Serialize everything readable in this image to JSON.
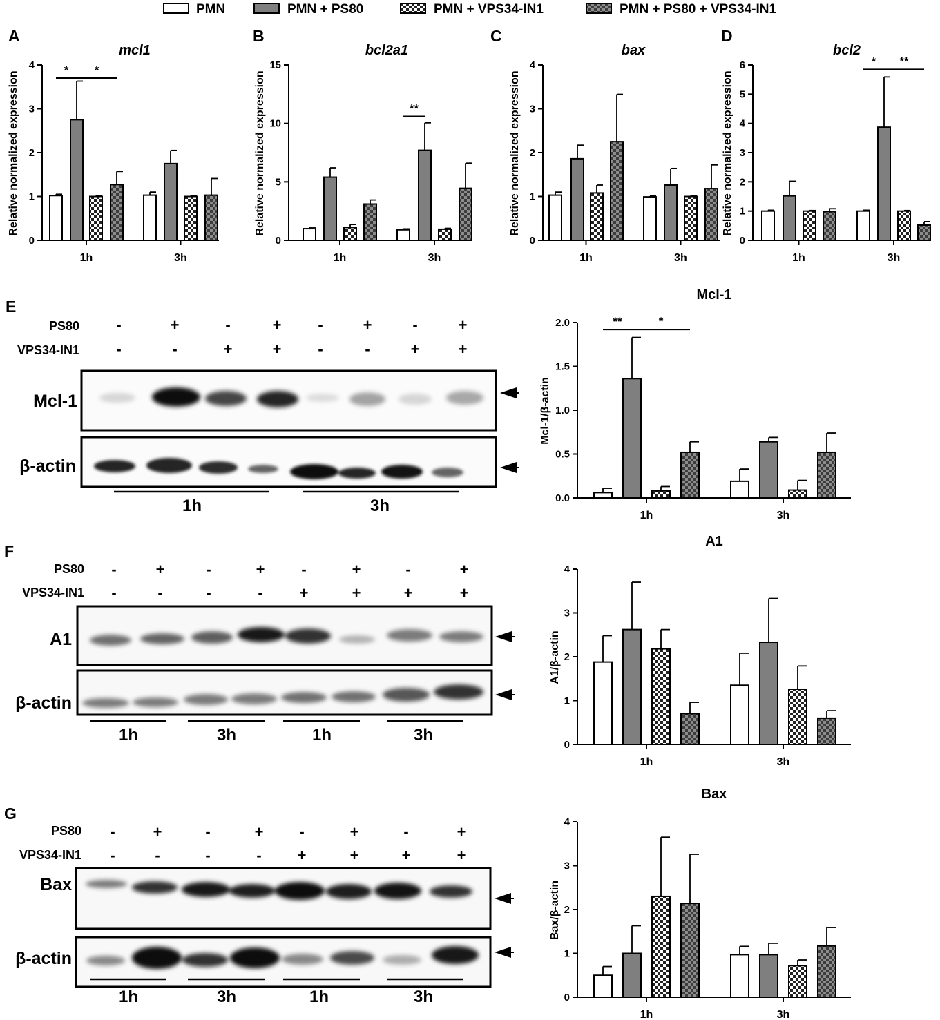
{
  "legend": [
    {
      "label": "PMN",
      "fill": "white"
    },
    {
      "label": "PMN + PS80",
      "fill": "gray"
    },
    {
      "label": "PMN + VPS34-IN1",
      "fill": "check-light"
    },
    {
      "label": "PMN + PS80 + VPS34-IN1",
      "fill": "check-dark"
    }
  ],
  "colors": {
    "bar_gray": "#7f7f7f",
    "check_dark_a": "#3c3c3c",
    "check_dark_b": "#8c8c8c",
    "axis": "#000000"
  },
  "panels_qpcr": [
    {
      "letter": "A",
      "title": "mcl1",
      "ylabel": "Relative normalized expression"
    },
    {
      "letter": "B",
      "title": "bcl2a1",
      "ylabel": "Relative normalized expression"
    },
    {
      "letter": "C",
      "title": "bax",
      "ylabel": "Relative normalized expression"
    },
    {
      "letter": "D",
      "title": "bcl2",
      "ylabel": "Relative normalized expression"
    }
  ],
  "blots": {
    "E": {
      "letter": "E",
      "row1_label": "PS80",
      "row2_label": "VPS34-IN1",
      "row1": [
        "-",
        "+",
        "-",
        "+",
        "-",
        "+",
        "-",
        "+"
      ],
      "row2": [
        "-",
        "-",
        "+",
        "+",
        "-",
        "-",
        "+",
        "+"
      ],
      "band1": "Mcl-1",
      "band2": "β-actin",
      "groups": [
        "1h",
        "3h"
      ]
    },
    "F": {
      "letter": "F",
      "row1_label": "PS80",
      "row2_label": "VPS34-IN1",
      "row1": [
        "-",
        "+",
        "-",
        "+",
        "-",
        "+",
        "-",
        "+"
      ],
      "row2": [
        "-",
        "-",
        "-",
        "-",
        "+",
        "+",
        "+",
        "+"
      ],
      "band1": "A1",
      "band2": "β-actin",
      "groups": [
        "1h",
        "3h",
        "1h",
        "3h"
      ]
    },
    "G": {
      "letter": "G",
      "row1_label": "PS80",
      "row2_label": "VPS34-IN1",
      "row1": [
        "-",
        "+",
        "-",
        "+",
        "-",
        "+",
        "-",
        "+"
      ],
      "row2": [
        "-",
        "-",
        "-",
        "-",
        "+",
        "+",
        "+",
        "+"
      ],
      "band1": "Bax",
      "band2": "β-actin",
      "groups": [
        "1h",
        "3h",
        "1h",
        "3h"
      ]
    }
  },
  "chart_data": [
    {
      "id": "A",
      "type": "bar",
      "title": "mcl1",
      "ylabel": "Relative normalized expression",
      "xlabel": "",
      "categories": [
        "1h",
        "3h"
      ],
      "ylim": [
        0,
        4
      ],
      "yticks": [
        0,
        1,
        2,
        3,
        4
      ],
      "series": [
        {
          "values": [
            1.02,
            1.03
          ],
          "errors": [
            0.03,
            0.07
          ]
        },
        {
          "values": [
            2.75,
            1.75
          ],
          "errors": [
            0.88,
            0.3
          ]
        },
        {
          "values": [
            1.0,
            1.0
          ],
          "errors": [
            0.02,
            0.02
          ]
        },
        {
          "values": [
            1.27,
            1.03
          ],
          "errors": [
            0.3,
            0.38
          ]
        }
      ],
      "significance": [
        {
          "group": 0,
          "from": 0,
          "to": 1,
          "label": "*",
          "y": 3.7
        },
        {
          "group": 0,
          "from": 1,
          "to": 3,
          "label": "*",
          "y": 3.7
        }
      ]
    },
    {
      "id": "B",
      "type": "bar",
      "title": "bcl2a1",
      "ylabel": "Relative normalized expression",
      "xlabel": "",
      "categories": [
        "1h",
        "3h"
      ],
      "ylim": [
        0,
        15
      ],
      "yticks": [
        0,
        5,
        10,
        15
      ],
      "series": [
        {
          "values": [
            1.0,
            0.9
          ],
          "errors": [
            0.12,
            0.08
          ]
        },
        {
          "values": [
            5.4,
            7.7
          ],
          "errors": [
            0.8,
            2.35
          ]
        },
        {
          "values": [
            1.1,
            0.95
          ],
          "errors": [
            0.25,
            0.08
          ]
        },
        {
          "values": [
            3.1,
            4.45
          ],
          "errors": [
            0.35,
            2.15
          ]
        }
      ],
      "significance": [
        {
          "group": 1,
          "from": 0,
          "to": 1,
          "label": "**",
          "y": 10.6
        }
      ]
    },
    {
      "id": "C",
      "type": "bar",
      "title": "bax",
      "ylabel": "Relative normalized expression",
      "xlabel": "",
      "categories": [
        "1h",
        "3h"
      ],
      "ylim": [
        0,
        4
      ],
      "yticks": [
        0,
        1,
        2,
        3,
        4
      ],
      "series": [
        {
          "values": [
            1.03,
            0.99
          ],
          "errors": [
            0.07,
            0.02
          ]
        },
        {
          "values": [
            1.86,
            1.26
          ],
          "errors": [
            0.31,
            0.38
          ]
        },
        {
          "values": [
            1.08,
            1.0
          ],
          "errors": [
            0.18,
            0.02
          ]
        },
        {
          "values": [
            2.25,
            1.18
          ],
          "errors": [
            1.08,
            0.54
          ]
        }
      ],
      "significance": []
    },
    {
      "id": "D",
      "type": "bar",
      "title": "bcl2",
      "ylabel": "Relative normalized expression",
      "xlabel": "",
      "categories": [
        "1h",
        "3h"
      ],
      "ylim": [
        0,
        6
      ],
      "yticks": [
        0,
        1,
        2,
        3,
        4,
        5,
        6
      ],
      "series": [
        {
          "values": [
            1.0,
            1.0
          ],
          "errors": [
            0.03,
            0.03
          ]
        },
        {
          "values": [
            1.52,
            3.87
          ],
          "errors": [
            0.5,
            1.72
          ]
        },
        {
          "values": [
            1.0,
            1.0
          ],
          "errors": [
            0.02,
            0.02
          ]
        },
        {
          "values": [
            0.98,
            0.52
          ],
          "errors": [
            0.1,
            0.12
          ]
        }
      ],
      "significance": [
        {
          "group": 1,
          "from": 0,
          "to": 1,
          "label": "*",
          "y": 5.85
        },
        {
          "group": 1,
          "from": 1,
          "to": 3,
          "label": "**",
          "y": 5.85
        }
      ]
    },
    {
      "id": "E",
      "type": "bar",
      "title": "Mcl-1",
      "ylabel": "Mcl-1/β-actin",
      "xlabel": "",
      "categories": [
        "1h",
        "3h"
      ],
      "ylim": [
        0,
        2.0
      ],
      "yticks": [
        0.0,
        0.5,
        1.0,
        1.5,
        2.0
      ],
      "series": [
        {
          "values": [
            0.06,
            0.19
          ],
          "errors": [
            0.05,
            0.14
          ]
        },
        {
          "values": [
            1.36,
            0.64
          ],
          "errors": [
            0.47,
            0.05
          ]
        },
        {
          "values": [
            0.08,
            0.09
          ],
          "errors": [
            0.05,
            0.11
          ]
        },
        {
          "values": [
            0.52,
            0.52
          ],
          "errors": [
            0.12,
            0.22
          ]
        }
      ],
      "significance": [
        {
          "group": 0,
          "from": 0,
          "to": 1,
          "label": "**",
          "y": 1.92
        },
        {
          "group": 0,
          "from": 1,
          "to": 3,
          "label": "*",
          "y": 1.92
        }
      ]
    },
    {
      "id": "F",
      "type": "bar",
      "title": "A1",
      "ylabel": "A1/β-actin",
      "xlabel": "",
      "categories": [
        "1h",
        "3h"
      ],
      "ylim": [
        0,
        4
      ],
      "yticks": [
        0,
        1,
        2,
        3,
        4
      ],
      "series": [
        {
          "values": [
            1.88,
            1.35
          ],
          "errors": [
            0.6,
            0.73
          ]
        },
        {
          "values": [
            2.62,
            2.33
          ],
          "errors": [
            1.08,
            1.0
          ]
        },
        {
          "values": [
            2.18,
            1.26
          ],
          "errors": [
            0.44,
            0.53
          ]
        },
        {
          "values": [
            0.7,
            0.6
          ],
          "errors": [
            0.26,
            0.17
          ]
        }
      ],
      "significance": []
    },
    {
      "id": "G",
      "type": "bar",
      "title": "Bax",
      "ylabel": "Bax/β-actin",
      "xlabel": "",
      "categories": [
        "1h",
        "3h"
      ],
      "ylim": [
        0,
        4
      ],
      "yticks": [
        0,
        1,
        2,
        3,
        4
      ],
      "series": [
        {
          "values": [
            0.5,
            0.97
          ],
          "errors": [
            0.2,
            0.19
          ]
        },
        {
          "values": [
            1.0,
            0.97
          ],
          "errors": [
            0.63,
            0.26
          ]
        },
        {
          "values": [
            2.3,
            0.72
          ],
          "errors": [
            1.35,
            0.13
          ]
        },
        {
          "values": [
            2.14,
            1.17
          ],
          "errors": [
            1.12,
            0.42
          ]
        }
      ],
      "significance": []
    }
  ]
}
